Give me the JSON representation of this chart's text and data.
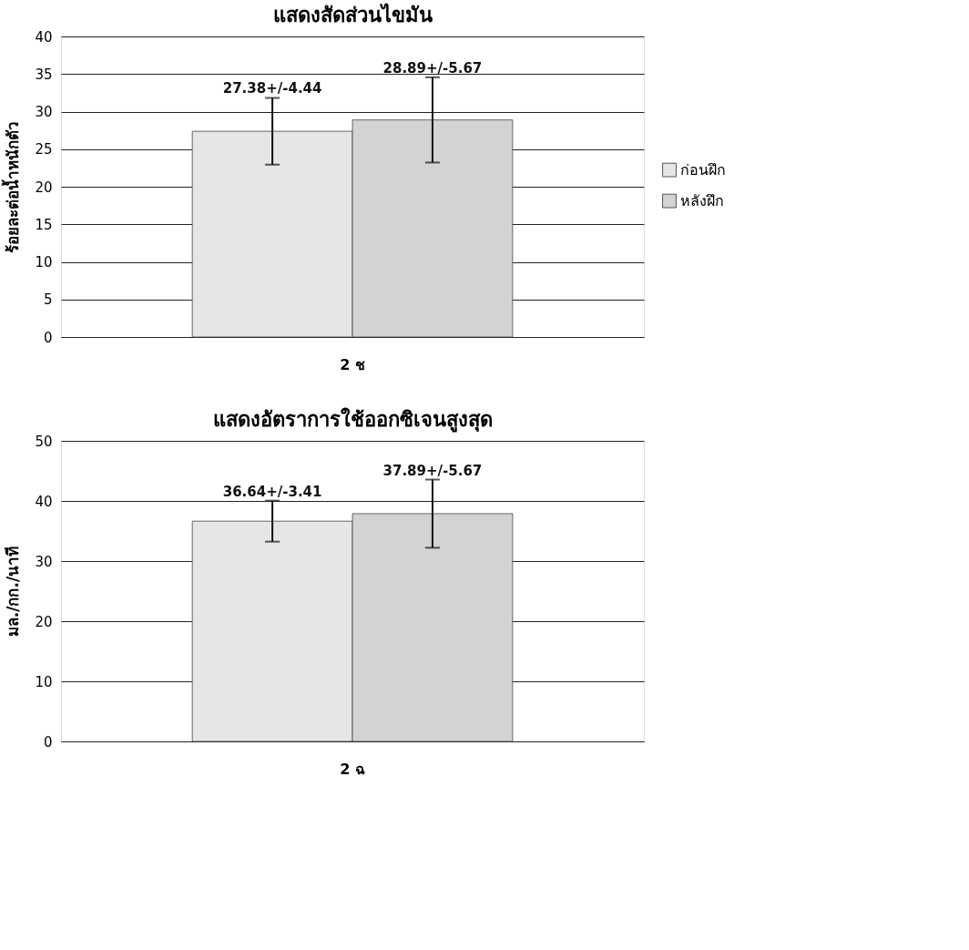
{
  "chart_data": [
    {
      "type": "bar",
      "title": "แสดงสัดส่วนไขมัน",
      "ylabel": "ร้อยละต่อน้ำหนักตัว",
      "categories": [
        "2 ช"
      ],
      "ylim": [
        0,
        40
      ],
      "yticks": [
        0,
        5,
        10,
        15,
        20,
        25,
        30,
        35,
        40
      ],
      "grid": "y",
      "legend": "right",
      "series": [
        {
          "name": "ก่อนฝึก",
          "color": "#e6e6e8",
          "values": [
            27.38
          ],
          "errors": [
            4.44
          ],
          "value_labels": [
            "27.38+/-4.44"
          ]
        },
        {
          "name": "หลังฝึก",
          "color": "#d3d3d5",
          "values": [
            28.89
          ],
          "errors": [
            5.67
          ],
          "value_labels": [
            "28.89+/-5.67"
          ]
        }
      ]
    },
    {
      "type": "bar",
      "title": "แสดงอัตราการใช้ออกซิเจนสูงสุด",
      "ylabel": "มล./กก./นาที",
      "categories": [
        "2 ฉ"
      ],
      "ylim": [
        0,
        50
      ],
      "yticks": [
        0,
        10,
        20,
        30,
        40,
        50
      ],
      "grid": "y",
      "legend": "right",
      "series": [
        {
          "name": "ก่อนฝึก",
          "color": "#e6e6e8",
          "values": [
            36.64
          ],
          "errors": [
            3.41
          ],
          "value_labels": [
            "36.64+/-3.41"
          ]
        },
        {
          "name": "หลังฝึก",
          "color": "#d3d3d5",
          "values": [
            37.89
          ],
          "errors": [
            5.67
          ],
          "value_labels": [
            "37.89+/-5.67"
          ]
        }
      ]
    }
  ]
}
